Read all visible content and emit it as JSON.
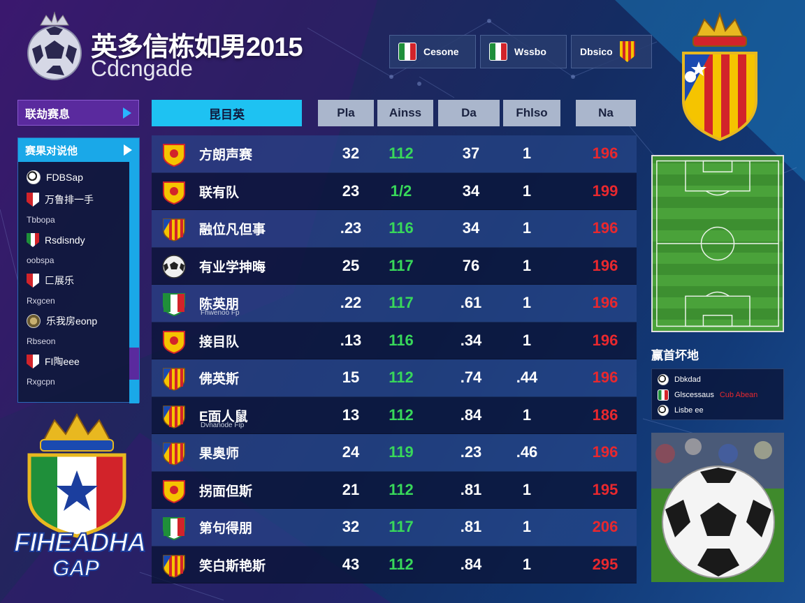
{
  "header": {
    "title": "英多信栋如男2015",
    "subtitle": "Cdcngade",
    "tabs": [
      {
        "label": "Cesone",
        "icon": "italy-flag-icon"
      },
      {
        "label": "Wssbo",
        "icon": "italy-flag-icon"
      },
      {
        "label": "Dbsico",
        "icon": "spain-flag-icon"
      }
    ]
  },
  "sidebar": {
    "header_label": "联劫赛息",
    "panel_title": "赛果对说他",
    "items": [
      {
        "label": "FDBSap",
        "sub": "",
        "icon": "soccer-ball-icon"
      },
      {
        "label": "万鲁排一手",
        "sub": "Tbbopa",
        "icon": "red-shield-icon"
      },
      {
        "label": "Rsdisndy",
        "sub": "oobspa",
        "icon": "italy-shield-icon"
      },
      {
        "label": "匚展乐",
        "sub": "Rxgcen",
        "icon": "red-shield-icon"
      },
      {
        "label": "乐我房eonp",
        "sub": "Rbseon",
        "icon": "ball-emblem-icon"
      },
      {
        "label": "FI陶eee",
        "sub": "Rxgcpn",
        "icon": "red-shield-icon"
      }
    ]
  },
  "bottom_crest": {
    "line1": "FIHEADHA",
    "line2": "GAP"
  },
  "table": {
    "columns": {
      "team": "昆目英",
      "pla": "Pla",
      "ain": "Ainss",
      "da": "Da",
      "fh": "Fhlso",
      "na": "Na"
    },
    "rows": [
      {
        "name": "方朗声赛",
        "sub": "",
        "pla": "32",
        "ain": "112",
        "da": "37",
        "fh": "1",
        "na": "196",
        "badge": "yellow-crest-icon"
      },
      {
        "name": "联有队",
        "sub": "",
        "pla": "23",
        "ain": "1/2",
        "da": "34",
        "fh": "1",
        "na": "199",
        "badge": "yellow-crest-icon"
      },
      {
        "name": "融位凡但事",
        "sub": "",
        "pla": ".23",
        "ain": "116",
        "da": "34",
        "fh": "1",
        "na": "196",
        "badge": "spain-crest-icon"
      },
      {
        "name": "有业学抻晦",
        "sub": "",
        "pla": "25",
        "ain": "117",
        "da": "76",
        "fh": "1",
        "na": "196",
        "badge": "soccer-ball-icon"
      },
      {
        "name": "陈英朋",
        "sub": "Fhwenoo Fp",
        "pla": ".22",
        "ain": "117",
        "da": ".61",
        "fh": "1",
        "na": "196",
        "badge": "italy-crest-icon"
      },
      {
        "name": "接目队",
        "sub": "",
        "pla": ".13",
        "ain": "116",
        "da": ".34",
        "fh": "1",
        "na": "196",
        "badge": "yellow-crest-icon"
      },
      {
        "name": "佛英斯",
        "sub": "",
        "pla": "15",
        "ain": "112",
        "da": ".74",
        "fh": ".44",
        "na": "196",
        "badge": "spain-crest-icon"
      },
      {
        "name": "E面人鼠",
        "sub": "Dvnanode Fip",
        "pla": "13",
        "ain": "112",
        "da": ".84",
        "fh": "1",
        "na": "186",
        "badge": "spain-crest-icon"
      },
      {
        "name": "果奥师",
        "sub": "",
        "pla": "24",
        "ain": "119",
        "da": ".23",
        "fh": ".46",
        "na": "196",
        "badge": "spain-crest-icon"
      },
      {
        "name": "拐面但斯",
        "sub": "",
        "pla": "21",
        "ain": "112",
        "da": ".81",
        "fh": "1",
        "na": "195",
        "badge": "yellow-crest-icon"
      },
      {
        "name": "第句得朋",
        "sub": "",
        "pla": "32",
        "ain": "117",
        "da": ".81",
        "fh": "1",
        "na": "206",
        "badge": "italy-crest-icon"
      },
      {
        "name": "笑白斯艳斯",
        "sub": "",
        "pla": "43",
        "ain": "112",
        "da": ".84",
        "fh": "1",
        "na": "295",
        "badge": "spain-crest-icon"
      }
    ]
  },
  "right_panel": {
    "title": "赢首坏地",
    "legend": [
      {
        "label": "Dbkdad",
        "extra": "",
        "icon": "soccer-ball-icon"
      },
      {
        "label": "Glscessaus",
        "extra": "Cub Abean",
        "icon": "italy-flag-icon"
      },
      {
        "label": "Lisbe ee",
        "extra": "",
        "icon": "soccer-ball-icon"
      }
    ]
  },
  "colors": {
    "accent_cyan": "#1ec2f2",
    "accent_purple": "#5a2a9e",
    "value_green": "#38d85a",
    "value_red": "#e8282e"
  }
}
